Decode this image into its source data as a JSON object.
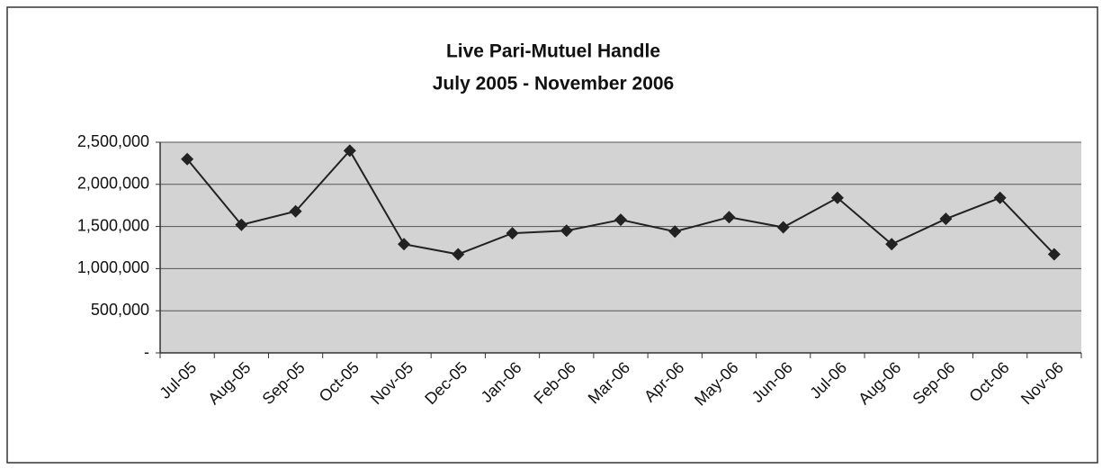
{
  "chart_data": {
    "type": "line",
    "title": "Live Pari-Mutuel Handle",
    "subtitle": "July 2005 - November 2006",
    "categories": [
      "Jul-05",
      "Aug-05",
      "Sep-05",
      "Oct-05",
      "Nov-05",
      "Dec-05",
      "Jan-06",
      "Feb-06",
      "Mar-06",
      "Apr-06",
      "May-06",
      "Jun-06",
      "Jul-06",
      "Aug-06",
      "Sep-06",
      "Oct-06",
      "Nov-06"
    ],
    "series": [
      {
        "name": "Live Pari-Mutuel Handle",
        "color": "#222222",
        "values": [
          2300000,
          1520000,
          1680000,
          2400000,
          1290000,
          1170000,
          1420000,
          1450000,
          1580000,
          1440000,
          1610000,
          1490000,
          1840000,
          1290000,
          1590000,
          1840000,
          1170000
        ]
      }
    ],
    "ylim": [
      0,
      2500000
    ],
    "yticks": [
      {
        "value": 0,
        "label": "-"
      },
      {
        "value": 500000,
        "label": "500,000"
      },
      {
        "value": 1000000,
        "label": "1,000,000"
      },
      {
        "value": 1500000,
        "label": "1,500,000"
      },
      {
        "value": 2000000,
        "label": "2,000,000"
      },
      {
        "value": 2500000,
        "label": "2,500,000"
      }
    ],
    "grid": true
  }
}
